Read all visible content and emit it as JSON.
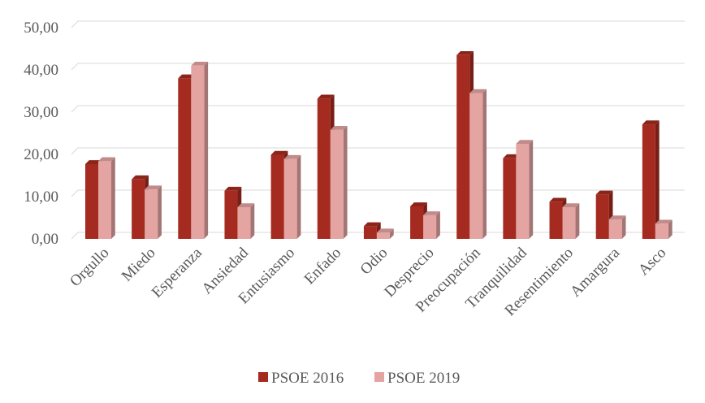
{
  "chart_data": {
    "type": "bar",
    "title": "",
    "xlabel": "",
    "ylabel": "",
    "ylim": [
      0,
      50
    ],
    "y_ticks": [
      "0,00",
      "10,00",
      "20,00",
      "30,00",
      "40,00",
      "50,00"
    ],
    "grid": true,
    "legend_position": "bottom",
    "categories": [
      "Orgullo",
      "Miedo",
      "Esperanza",
      "Ansiedad",
      "Entusiasmo",
      "Enfado",
      "Odio",
      "Desprecio",
      "Preocupación",
      "Tranquilidad",
      "Resentimiento",
      "Amargura",
      "Asco"
    ],
    "series": [
      {
        "name": "PSOE 2016",
        "color": "#a52a1f",
        "values": [
          17.7,
          14.1,
          38.0,
          11.4,
          19.9,
          33.2,
          3.0,
          7.7,
          43.5,
          19.1,
          8.8,
          10.5,
          27.1
        ]
      },
      {
        "name": "PSOE 2019",
        "color": "#e3a4a2",
        "values": [
          18.4,
          11.7,
          41.0,
          7.5,
          18.9,
          25.8,
          1.5,
          5.6,
          34.5,
          22.5,
          7.5,
          4.6,
          3.6
        ]
      }
    ]
  }
}
